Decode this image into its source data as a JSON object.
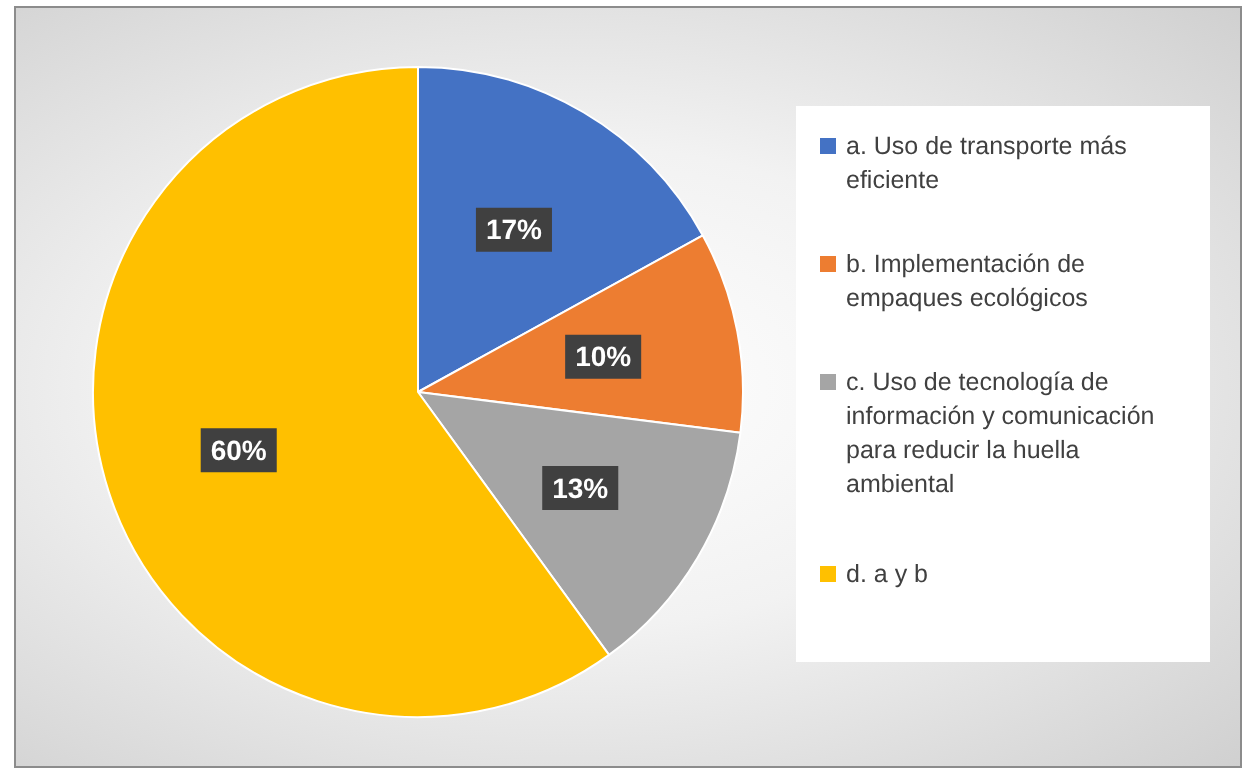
{
  "chart_data": {
    "type": "pie",
    "categories": [
      "a. Uso de transporte más eficiente",
      "b. Implementación de empaques ecológicos",
      "c. Uso de tecnología de información y comunicación para reducir la huella ambiental",
      "d. a y b"
    ],
    "values": [
      17,
      10,
      13,
      60
    ],
    "colors": [
      "#4472c4",
      "#ed7d31",
      "#a5a5a5",
      "#ffc000"
    ],
    "value_labels": [
      "17%",
      "10%",
      "13%",
      "60%"
    ],
    "legend": "right"
  }
}
